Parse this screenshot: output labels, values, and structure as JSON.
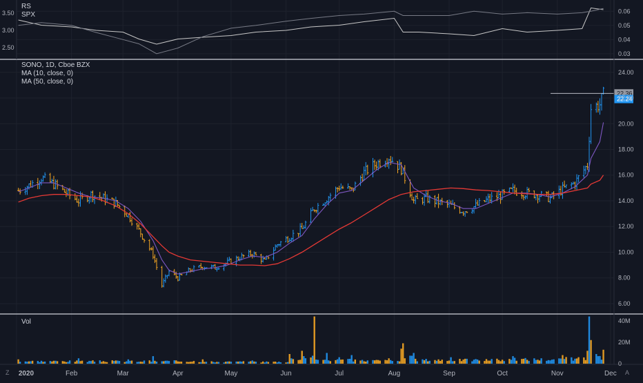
{
  "panes": {
    "rs": {
      "legend": [
        "RS",
        "SPX"
      ],
      "left_ticks": [
        "3.50",
        "3.00",
        "2.50"
      ],
      "right_ticks": [
        "0.06",
        "0.05",
        "0.04",
        "0.03"
      ]
    },
    "price": {
      "legend": [
        "SONO, 1D, Cboe BZX",
        "MA (10, close, 0)",
        "MA (50, close, 0)"
      ],
      "ticks": [
        "24.00",
        "22.00",
        "20.00",
        "18.00",
        "16.00",
        "14.00",
        "12.00",
        "10.00",
        "8.00",
        "6.00"
      ],
      "last_price_label": "22.36",
      "current_price_label": "22.24"
    },
    "volume": {
      "legend": [
        "Vol"
      ],
      "ticks": [
        "40M",
        "20M",
        "0"
      ]
    }
  },
  "time_axis": [
    "2020",
    "Feb",
    "Mar",
    "Apr",
    "May",
    "Jun",
    "Jul",
    "Aug",
    "Sep",
    "Oct",
    "Nov",
    "Dec"
  ],
  "corner_labels": {
    "left": "Z",
    "right": "A"
  },
  "colors": {
    "background": "#131722",
    "up": "#2196f3",
    "down": "#f5a623",
    "ma10": "#7e57c2",
    "ma50": "#e53935",
    "rs_line": "#c8c8c8",
    "spx_line": "#787b86",
    "grid": "#1e222d",
    "divider": "#d1d4dc"
  },
  "chart_data": [
    {
      "type": "line",
      "title": "",
      "x": [
        "2020-01-02",
        "2020-01-15",
        "2020-02-01",
        "2020-02-15",
        "2020-03-01",
        "2020-03-10",
        "2020-03-20",
        "2020-04-01",
        "2020-04-15",
        "2020-05-01",
        "2020-05-15",
        "2020-06-01",
        "2020-06-15",
        "2020-07-01",
        "2020-07-15",
        "2020-08-01",
        "2020-08-06",
        "2020-08-15",
        "2020-09-01",
        "2020-09-15",
        "2020-10-01",
        "2020-10-15",
        "2020-11-01",
        "2020-11-15",
        "2020-11-20",
        "2020-11-27"
      ],
      "series": [
        {
          "name": "RS",
          "axis": "left",
          "values": [
            3.3,
            3.15,
            3.1,
            3.0,
            2.95,
            2.75,
            2.6,
            2.75,
            2.8,
            2.85,
            2.95,
            3.0,
            3.1,
            3.15,
            3.25,
            3.35,
            2.95,
            2.95,
            2.9,
            2.85,
            3.05,
            2.95,
            3.0,
            3.05,
            3.65,
            3.6
          ]
        },
        {
          "name": "SPX",
          "axis": "right",
          "values": [
            0.05,
            0.052,
            0.05,
            0.045,
            0.04,
            0.037,
            0.03,
            0.034,
            0.042,
            0.048,
            0.05,
            0.053,
            0.055,
            0.057,
            0.058,
            0.06,
            0.057,
            0.057,
            0.057,
            0.06,
            0.058,
            0.059,
            0.058,
            0.059,
            0.06,
            0.062
          ]
        }
      ],
      "ylim_left": [
        2.2,
        3.8
      ],
      "ylim_right": [
        0.027,
        0.066
      ]
    },
    {
      "type": "ohlc",
      "title": "SONO, 1D, Cboe BZX",
      "ylim": [
        5.3,
        24.9
      ],
      "x": [
        "2020-01-02",
        "2020-01-08",
        "2020-01-15",
        "2020-01-22",
        "2020-01-29",
        "2020-02-05",
        "2020-02-12",
        "2020-02-19",
        "2020-02-26",
        "2020-03-04",
        "2020-03-11",
        "2020-03-18",
        "2020-03-23",
        "2020-03-27",
        "2020-04-01",
        "2020-04-08",
        "2020-04-15",
        "2020-04-22",
        "2020-04-29",
        "2020-05-06",
        "2020-05-13",
        "2020-05-20",
        "2020-05-27",
        "2020-06-03",
        "2020-06-10",
        "2020-06-17",
        "2020-06-24",
        "2020-07-01",
        "2020-07-08",
        "2020-07-15",
        "2020-07-22",
        "2020-07-29",
        "2020-08-05",
        "2020-08-12",
        "2020-08-19",
        "2020-08-26",
        "2020-09-02",
        "2020-09-09",
        "2020-09-16",
        "2020-09-23",
        "2020-09-30",
        "2020-10-07",
        "2020-10-14",
        "2020-10-21",
        "2020-10-28",
        "2020-11-04",
        "2020-11-11",
        "2020-11-18",
        "2020-11-20",
        "2020-11-25",
        "2020-11-27"
      ],
      "series": [
        {
          "name": "Close",
          "values": [
            14.8,
            15.2,
            15.8,
            15.3,
            14.6,
            14.0,
            14.5,
            14.2,
            13.8,
            12.9,
            11.5,
            9.8,
            7.4,
            8.5,
            8.0,
            8.6,
            8.9,
            8.8,
            9.2,
            9.6,
            9.9,
            9.3,
            10.6,
            11.2,
            11.8,
            13.4,
            14.2,
            15.1,
            14.8,
            16.2,
            16.9,
            17.4,
            16.5,
            14.0,
            14.2,
            13.9,
            13.6,
            13.2,
            13.6,
            14.1,
            14.4,
            14.8,
            14.6,
            14.5,
            14.2,
            14.9,
            15.4,
            16.8,
            21.2,
            21.5,
            22.24
          ]
        },
        {
          "name": "MA (10, close, 0)",
          "values": [
            14.7,
            15.0,
            15.4,
            15.4,
            15.0,
            14.6,
            14.3,
            14.2,
            14.0,
            13.4,
            12.4,
            10.9,
            9.4,
            8.6,
            8.3,
            8.5,
            8.7,
            8.8,
            9.0,
            9.4,
            9.7,
            9.6,
            10.0,
            10.7,
            11.3,
            12.6,
            13.7,
            14.6,
            14.8,
            15.6,
            16.4,
            17.0,
            16.8,
            15.0,
            14.4,
            14.0,
            13.8,
            13.4,
            13.4,
            13.8,
            14.2,
            14.6,
            14.6,
            14.5,
            14.3,
            14.6,
            15.1,
            16.0,
            17.3,
            18.6,
            20.1
          ]
        },
        {
          "name": "MA (50, close, 0)",
          "values": [
            13.9,
            14.2,
            14.4,
            14.5,
            14.5,
            14.4,
            14.3,
            14.0,
            13.6,
            13.0,
            12.2,
            11.2,
            10.5,
            10.0,
            9.7,
            9.4,
            9.3,
            9.2,
            9.1,
            9.0,
            9.0,
            8.95,
            9.1,
            9.5,
            10.0,
            10.6,
            11.2,
            11.8,
            12.3,
            12.9,
            13.5,
            14.1,
            14.5,
            14.7,
            14.8,
            14.9,
            15.0,
            14.95,
            14.85,
            14.8,
            14.7,
            14.6,
            14.55,
            14.5,
            14.5,
            14.6,
            14.8,
            15.0,
            15.3,
            15.6,
            16.0
          ]
        }
      ],
      "last_price": 22.36,
      "current_price": 22.24
    },
    {
      "type": "bar",
      "title": "Vol",
      "ylim": [
        0,
        45
      ],
      "x": [
        "2020-01-02",
        "2020-02-05",
        "2020-03-04",
        "2020-03-18",
        "2020-04-15",
        "2020-05-13",
        "2020-06-03",
        "2020-06-10",
        "2020-06-17",
        "2020-06-24",
        "2020-07-01",
        "2020-07-08",
        "2020-07-29",
        "2020-08-05",
        "2020-08-06",
        "2020-08-12",
        "2020-09-02",
        "2020-10-07",
        "2020-11-04",
        "2020-11-18",
        "2020-11-19",
        "2020-11-20",
        "2020-11-23",
        "2020-11-27"
      ],
      "values": [
        4,
        5,
        4,
        7,
        4,
        3,
        9,
        12,
        44,
        10,
        6,
        8,
        5,
        14,
        19,
        10,
        6,
        7,
        8,
        12,
        44,
        22,
        9,
        13
      ]
    }
  ]
}
